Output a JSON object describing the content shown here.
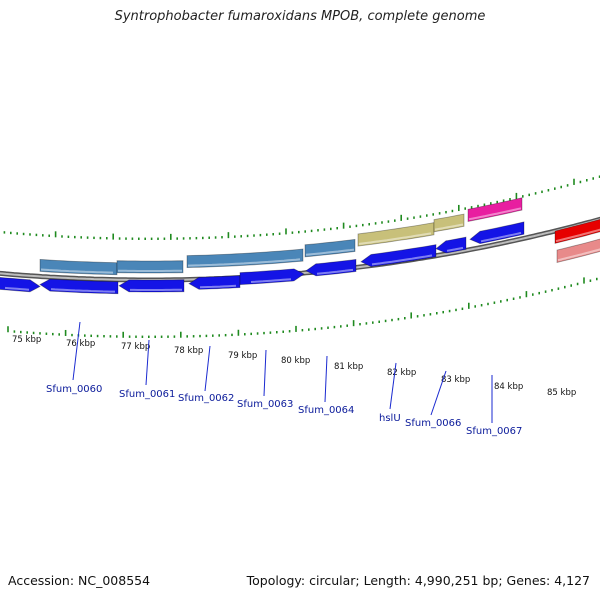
{
  "title": "Syntrophobacter fumaroxidans MPOB, complete genome",
  "footer": {
    "accession": "Accession: NC_008554",
    "topology": "Topology: circular; Length: 4,990,251 bp; Genes: 4,127"
  },
  "ruler": {
    "labels": [
      "75 kbp",
      "76 kbp",
      "77 kbp",
      "78 kbp",
      "79 kbp",
      "80 kbp",
      "81 kbp",
      "82 kbp",
      "83 kbp",
      "84 kbp",
      "85 kbp"
    ]
  },
  "gene_labels": [
    "Sfum_0060",
    "Sfum_0061",
    "Sfum_0062",
    "Sfum_0063",
    "Sfum_0064",
    "hslU",
    "Sfum_0066",
    "Sfum_0067"
  ],
  "colors": {
    "cds": "#1414e6",
    "gene": "#4a86b8",
    "gene_yellow": "#c8c07a",
    "gene_magenta": "#e81ea0",
    "rrna_light": "#e88a8a",
    "rrna_red": "#e60000",
    "ticks": "#1f8a1f",
    "backbone": "#8a8a8a"
  }
}
